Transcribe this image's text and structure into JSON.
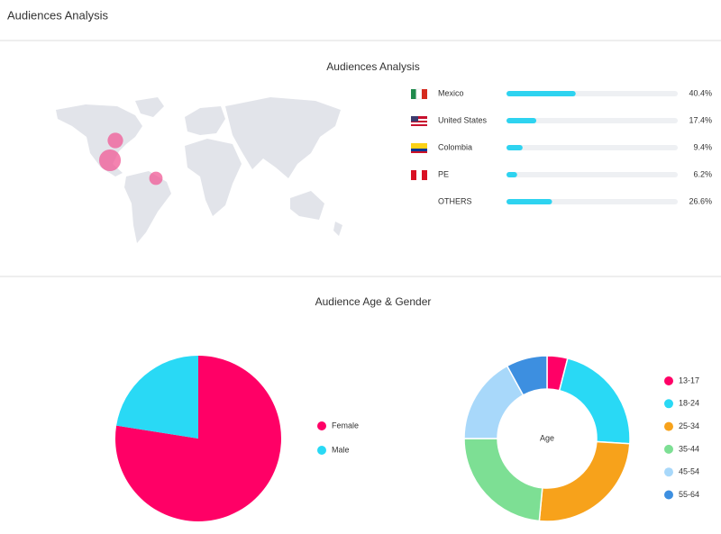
{
  "header": {
    "title": "Audiences Analysis"
  },
  "chart_data": [
    {
      "type": "bar",
      "title": "Audiences Analysis",
      "orientation": "horizontal",
      "categories": [
        "Mexico",
        "United States",
        "Colombia",
        "PE",
        "OTHERS"
      ],
      "values": [
        40.4,
        17.4,
        9.4,
        6.2,
        26.6
      ],
      "value_labels": [
        "40.4%",
        "17.4%",
        "9.4%",
        "6.2%",
        "26.6%"
      ],
      "color": "#2ed3f0",
      "xlim": [
        0,
        100
      ]
    },
    {
      "type": "pie",
      "title": "Audience Age & Gender",
      "categories": [
        "Female",
        "Male"
      ],
      "values": [
        77.5,
        22.5
      ],
      "colors": [
        "#ff0066",
        "#29d9f5"
      ]
    },
    {
      "type": "donut",
      "center_label": "Age",
      "categories": [
        "13-17",
        "18-24",
        "25-34",
        "35-44",
        "45-54",
        "55-64"
      ],
      "values": [
        4,
        22,
        25.5,
        23.5,
        17,
        8
      ],
      "colors": [
        "#ff0066",
        "#29d9f5",
        "#f7a21b",
        "#7ddf94",
        "#a8d8fa",
        "#3d8fe0"
      ]
    }
  ]
}
